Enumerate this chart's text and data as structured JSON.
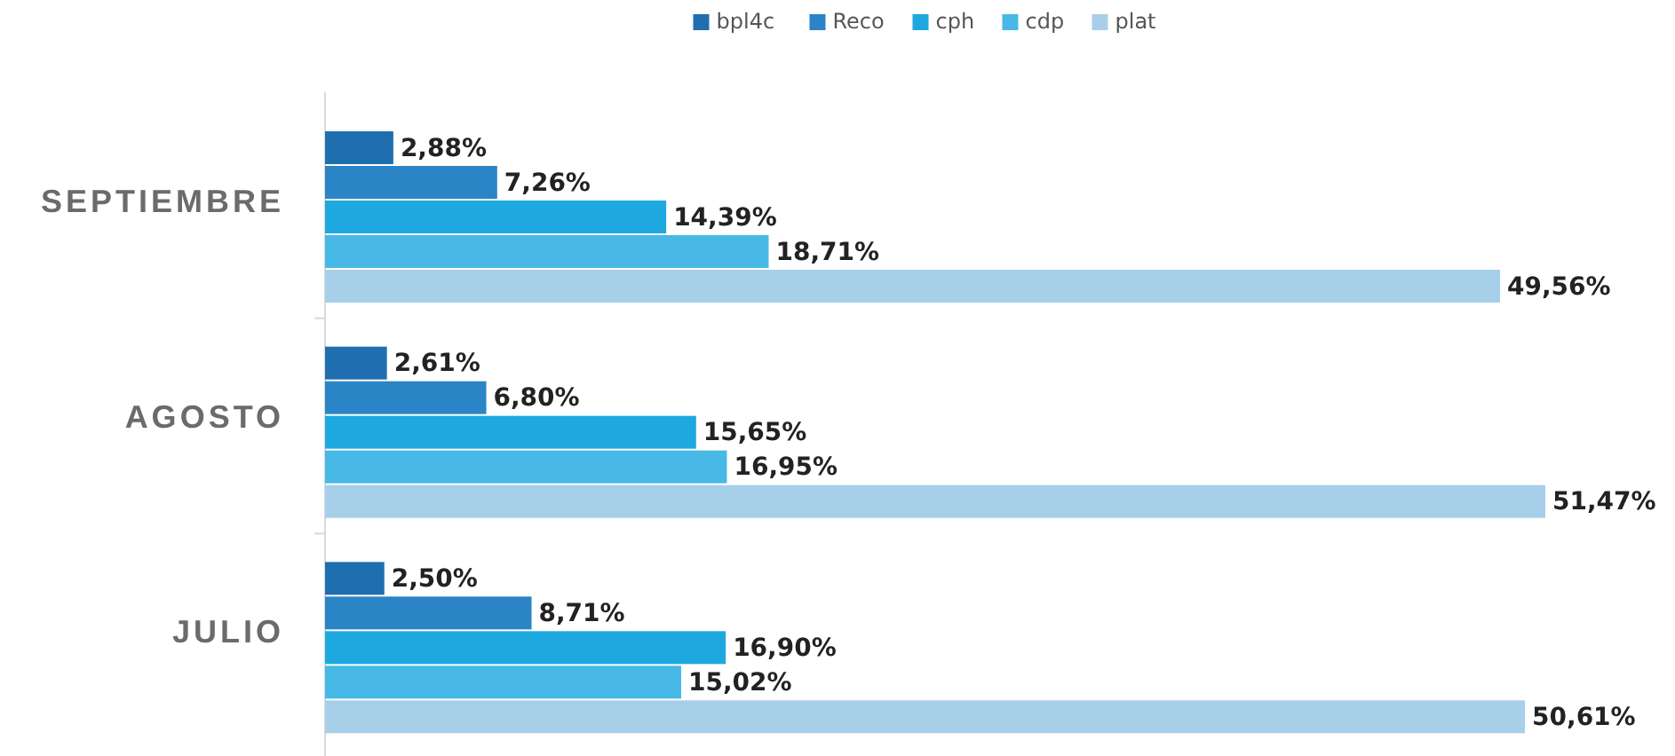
{
  "chart_data": {
    "type": "bar",
    "orientation": "horizontal",
    "categories": [
      "SEPTIEMBRE",
      "AGOSTO",
      "JULIO"
    ],
    "legend": "top",
    "series": [
      {
        "name": "bpl4c",
        "color": "#1f6fb0",
        "values": [
          2.88,
          2.61,
          2.5
        ],
        "value_labels": [
          "2,88%",
          "2,61%",
          "2,50%"
        ]
      },
      {
        "name": "Reco",
        "color": "#2a84c6",
        "values": [
          7.26,
          6.8,
          8.71
        ],
        "value_labels": [
          "7,26%",
          "6,80%",
          "8,71%"
        ]
      },
      {
        "name": "cph",
        "color": "#1da8e0",
        "values": [
          14.39,
          15.65,
          16.9
        ],
        "value_labels": [
          "14,39%",
          "15,65%",
          "16,90%"
        ]
      },
      {
        "name": "cdp",
        "color": "#48b9e6",
        "values": [
          18.71,
          16.95,
          15.02
        ],
        "value_labels": [
          "18,71%",
          "16,95%",
          "15,02%"
        ]
      },
      {
        "name": "plat",
        "color": "#a8cfe9",
        "values": [
          49.56,
          51.47,
          50.61
        ],
        "value_labels": [
          "49,56%",
          "51,47%",
          "50,61%"
        ]
      }
    ]
  }
}
